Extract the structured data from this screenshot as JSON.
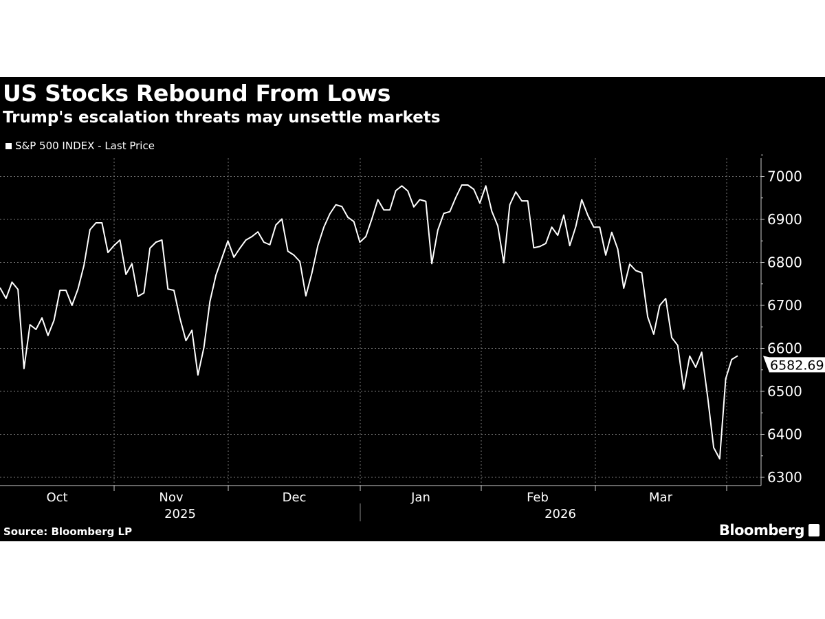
{
  "title": "US Stocks Rebound From Lows",
  "subtitle": "Trump's escalation threats may unsettle markets",
  "source": "Source: Bloomberg LP",
  "logo": "Bloomberg",
  "chart_data": {
    "type": "line",
    "title": "US Stocks Rebound From Lows",
    "subtitle": "Trump's escalation threats may unsettle markets",
    "legend": [
      "S&P 500 INDEX - Last Price"
    ],
    "legend_placement": "top-left",
    "grid": true,
    "line_color": "#ffffff",
    "background": "#000000",
    "ylim": [
      6280,
      7040
    ],
    "y_ticks": [
      6300,
      6400,
      6500,
      6600,
      6700,
      6800,
      6900,
      7000
    ],
    "y_axis_side": "right",
    "x_month_labels": [
      "Oct",
      "Nov",
      "Dec",
      "Jan",
      "Feb",
      "Mar"
    ],
    "x_year_labels": [
      "2025",
      "2026"
    ],
    "last_value_label": "6582.69",
    "series": [
      {
        "name": "S&P 500 INDEX - Last Price",
        "values": [
          6741,
          6716,
          6754,
          6737,
          6553,
          6655,
          6644,
          6671,
          6630,
          6665,
          6735,
          6735,
          6700,
          6738,
          6793,
          6876,
          6892,
          6892,
          6823,
          6839,
          6852,
          6772,
          6797,
          6721,
          6729,
          6833,
          6847,
          6852,
          6738,
          6735,
          6670,
          6618,
          6642,
          6538,
          6602,
          6709,
          6770,
          6810,
          6850,
          6812,
          6833,
          6852,
          6860,
          6871,
          6847,
          6841,
          6887,
          6901,
          6826,
          6817,
          6802,
          6722,
          6775,
          6839,
          6882,
          6913,
          6934,
          6930,
          6905,
          6895,
          6847,
          6860,
          6901,
          6946,
          6922,
          6922,
          6967,
          6978,
          6966,
          6929,
          6946,
          6942,
          6797,
          6875,
          6914,
          6918,
          6951,
          6980,
          6980,
          6970,
          6938,
          6978,
          6919,
          6885,
          6799,
          6934,
          6964,
          6943,
          6943,
          6834,
          6837,
          6844,
          6882,
          6863,
          6910,
          6839,
          6883,
          6946,
          6910,
          6882,
          6882,
          6817,
          6870,
          6831,
          6740,
          6796,
          6781,
          6776,
          6673,
          6633,
          6700,
          6716,
          6625,
          6607,
          6505,
          6582,
          6556,
          6591,
          6486,
          6369,
          6343,
          6529,
          6574,
          6582.69
        ]
      }
    ]
  }
}
